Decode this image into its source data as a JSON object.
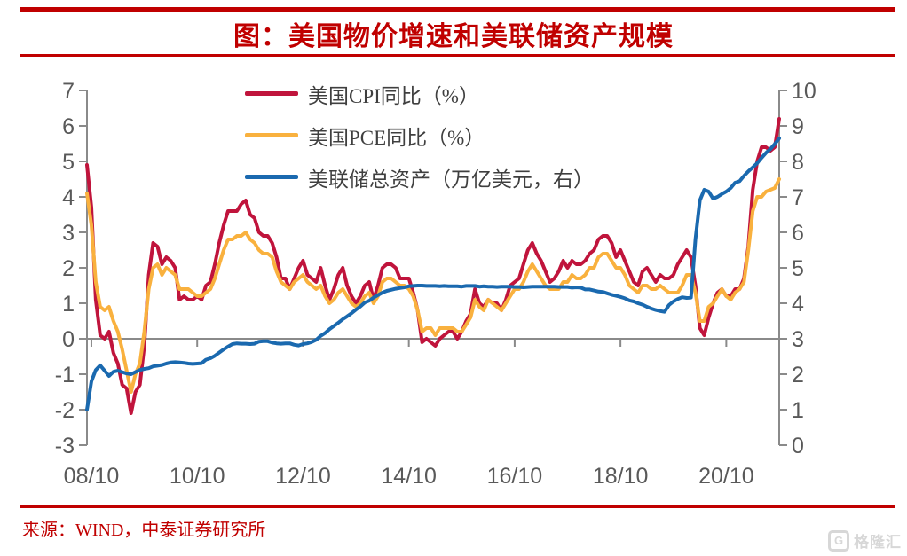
{
  "header": {
    "title": "图：美国物价增速和美联储资产规模"
  },
  "legend": [
    {
      "label": "美国CPI同比（%）",
      "color_key": "cpi"
    },
    {
      "label": "美国PCE同比（%）",
      "color_key": "pce"
    },
    {
      "label": "美联储总资产（万亿美元，右）",
      "color_key": "fed"
    }
  ],
  "footer": {
    "source": "来源：WIND，中泰证券研究所"
  },
  "watermark": {
    "icon": "G",
    "text": "格隆汇"
  },
  "colors": {
    "cpi": "#C0143C",
    "pce": "#F9B13E",
    "fed": "#1A69AF",
    "title_red": "#C00000",
    "rule_red": "#C00000",
    "axis_gray": "#8A8A8A",
    "label_gray": "#595959",
    "watermark_gray": "#D7D7D7"
  },
  "chart_data": {
    "type": "line",
    "title": "图：美国物价增速和美联储资产规模",
    "x_start": "2008-09",
    "x_unit": "month",
    "x_tick_labels": [
      "08/10",
      "10/10",
      "12/10",
      "14/10",
      "16/10",
      "18/10",
      "20/10"
    ],
    "x_tick_month_indices": [
      1,
      25,
      49,
      73,
      97,
      121,
      145
    ],
    "left_axis": {
      "range": [
        -3,
        7
      ],
      "ticks": [
        7,
        6,
        5,
        4,
        3,
        2,
        1,
        0,
        -1,
        -2,
        -3
      ]
    },
    "right_axis": {
      "range": [
        0,
        10
      ],
      "ticks": [
        10,
        9,
        8,
        7,
        6,
        5,
        4,
        3,
        2,
        1,
        0
      ]
    },
    "grid": "zero-line-only",
    "legend_position": "top-left-inside",
    "series": [
      {
        "name": "美国CPI同比（%）",
        "axis": "left",
        "color_key": "cpi",
        "values": [
          4.9,
          3.7,
          1.1,
          0.1,
          0.0,
          0.2,
          -0.4,
          -0.7,
          -1.3,
          -1.4,
          -2.1,
          -1.5,
          -1.3,
          -0.2,
          1.8,
          2.7,
          2.6,
          2.1,
          2.3,
          2.2,
          2.0,
          1.1,
          1.2,
          1.1,
          1.1,
          1.2,
          1.1,
          1.5,
          1.6,
          2.1,
          2.7,
          3.2,
          3.6,
          3.6,
          3.6,
          3.8,
          3.9,
          3.5,
          3.4,
          3.0,
          2.9,
          2.9,
          2.7,
          2.3,
          1.7,
          1.7,
          1.4,
          1.7,
          2.0,
          2.2,
          1.8,
          1.7,
          1.6,
          2.0,
          1.5,
          1.1,
          1.4,
          1.8,
          2.0,
          1.5,
          1.2,
          1.0,
          1.2,
          1.5,
          1.6,
          1.1,
          1.5,
          2.0,
          2.1,
          2.1,
          2.0,
          1.7,
          1.7,
          1.7,
          1.3,
          0.8,
          -0.1,
          0.0,
          -0.1,
          -0.2,
          0.0,
          0.1,
          0.2,
          0.2,
          0.0,
          0.2,
          0.5,
          0.7,
          1.4,
          1.0,
          0.9,
          1.1,
          1.0,
          1.0,
          0.8,
          1.1,
          1.5,
          1.6,
          1.7,
          2.1,
          2.5,
          2.7,
          2.4,
          2.2,
          1.9,
          1.6,
          1.7,
          1.9,
          2.2,
          2.0,
          2.2,
          2.1,
          2.1,
          2.2,
          2.4,
          2.5,
          2.8,
          2.9,
          2.9,
          2.7,
          2.3,
          2.5,
          2.2,
          1.9,
          1.6,
          1.5,
          1.9,
          2.0,
          1.8,
          1.6,
          1.8,
          1.7,
          1.7,
          1.8,
          2.1,
          2.3,
          2.5,
          2.3,
          1.5,
          0.3,
          0.1,
          0.6,
          1.0,
          1.3,
          1.4,
          1.2,
          1.2,
          1.4,
          1.4,
          1.7,
          2.6,
          4.2,
          5.0,
          5.4,
          5.4,
          5.3,
          5.4,
          6.2
        ]
      },
      {
        "name": "美国PCE同比（%）",
        "axis": "left",
        "color_key": "pce",
        "values": [
          4.1,
          3.2,
          1.6,
          0.9,
          0.8,
          0.9,
          0.5,
          0.2,
          -0.3,
          -0.9,
          -1.5,
          -1.0,
          -0.7,
          0.2,
          1.4,
          2.0,
          2.1,
          1.8,
          2.0,
          1.9,
          1.8,
          1.4,
          1.4,
          1.4,
          1.3,
          1.2,
          1.2,
          1.3,
          1.4,
          1.7,
          2.1,
          2.5,
          2.8,
          2.8,
          2.9,
          2.9,
          3.0,
          2.8,
          2.7,
          2.5,
          2.4,
          2.4,
          2.3,
          1.9,
          1.6,
          1.5,
          1.4,
          1.6,
          1.7,
          1.8,
          1.6,
          1.5,
          1.4,
          1.5,
          1.2,
          1.0,
          1.1,
          1.3,
          1.4,
          1.2,
          1.0,
          0.9,
          1.0,
          1.2,
          1.3,
          1.0,
          1.2,
          1.6,
          1.7,
          1.7,
          1.6,
          1.5,
          1.5,
          1.4,
          1.2,
          0.8,
          0.2,
          0.3,
          0.3,
          0.1,
          0.3,
          0.3,
          0.3,
          0.3,
          0.2,
          0.2,
          0.4,
          0.6,
          1.1,
          0.9,
          0.8,
          1.1,
          1.0,
          0.9,
          0.8,
          1.0,
          1.2,
          1.4,
          1.4,
          1.6,
          1.9,
          2.1,
          1.9,
          1.7,
          1.5,
          1.4,
          1.4,
          1.4,
          1.6,
          1.6,
          1.8,
          1.7,
          1.7,
          1.8,
          2.0,
          2.0,
          2.3,
          2.4,
          2.4,
          2.2,
          2.0,
          2.0,
          1.8,
          1.5,
          1.4,
          1.3,
          1.5,
          1.5,
          1.4,
          1.4,
          1.5,
          1.4,
          1.3,
          1.3,
          1.3,
          1.5,
          1.8,
          1.8,
          1.3,
          0.5,
          0.5,
          0.9,
          1.0,
          1.2,
          1.4,
          1.2,
          1.1,
          1.3,
          1.4,
          1.6,
          2.5,
          3.6,
          4.0,
          4.0,
          4.15,
          4.2,
          4.25,
          4.5
        ]
      },
      {
        "name": "美联储总资产（万亿美元，右）",
        "axis": "right",
        "color_key": "fed",
        "values": [
          1.0,
          1.8,
          2.12,
          2.25,
          2.1,
          1.95,
          2.07,
          2.1,
          2.06,
          2.02,
          2.0,
          2.06,
          2.12,
          2.15,
          2.17,
          2.22,
          2.24,
          2.26,
          2.3,
          2.33,
          2.34,
          2.33,
          2.32,
          2.3,
          2.29,
          2.3,
          2.31,
          2.41,
          2.45,
          2.52,
          2.61,
          2.7,
          2.78,
          2.85,
          2.87,
          2.86,
          2.86,
          2.85,
          2.86,
          2.92,
          2.93,
          2.93,
          2.89,
          2.87,
          2.86,
          2.87,
          2.87,
          2.83,
          2.81,
          2.85,
          2.87,
          2.91,
          2.97,
          3.08,
          3.16,
          3.27,
          3.36,
          3.45,
          3.55,
          3.63,
          3.72,
          3.82,
          3.91,
          4.02,
          4.07,
          4.16,
          4.23,
          4.3,
          4.35,
          4.38,
          4.41,
          4.43,
          4.45,
          4.48,
          4.49,
          4.5,
          4.5,
          4.49,
          4.49,
          4.49,
          4.48,
          4.49,
          4.48,
          4.48,
          4.48,
          4.47,
          4.49,
          4.49,
          4.49,
          4.47,
          4.48,
          4.47,
          4.47,
          4.46,
          4.47,
          4.47,
          4.47,
          4.46,
          4.46,
          4.45,
          4.46,
          4.47,
          4.47,
          4.47,
          4.47,
          4.47,
          4.47,
          4.46,
          4.46,
          4.46,
          4.44,
          4.45,
          4.44,
          4.39,
          4.39,
          4.36,
          4.33,
          4.32,
          4.28,
          4.24,
          4.21,
          4.18,
          4.14,
          4.08,
          4.05,
          4.0,
          3.96,
          3.9,
          3.85,
          3.81,
          3.78,
          3.76,
          3.95,
          4.05,
          4.12,
          4.17,
          4.15,
          4.16,
          5.8,
          6.9,
          7.2,
          7.15,
          6.95,
          7.0,
          7.08,
          7.15,
          7.25,
          7.4,
          7.44,
          7.59,
          7.72,
          7.83,
          7.95,
          8.1,
          8.24,
          8.35,
          8.49,
          8.65
        ]
      }
    ]
  }
}
